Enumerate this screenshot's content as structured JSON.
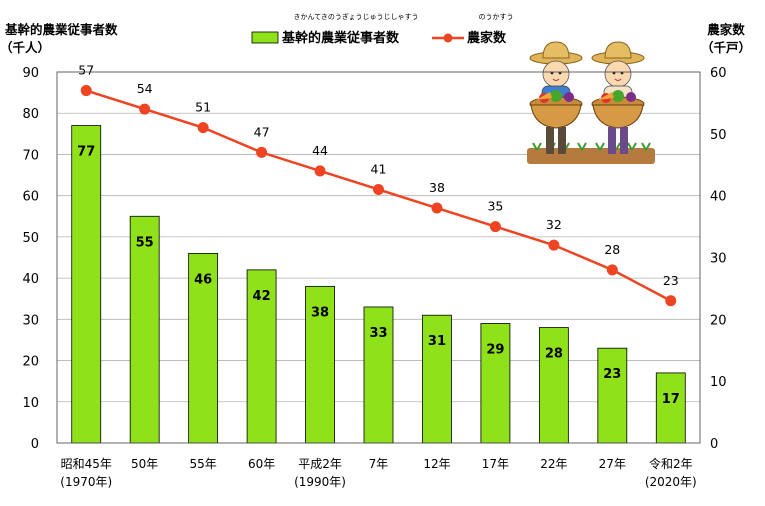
{
  "chart_data": {
    "type": "bar+line",
    "categories": [
      [
        "昭和45年",
        "(1970年)"
      ],
      [
        "50年"
      ],
      [
        "55年"
      ],
      [
        "60年"
      ],
      [
        "平成2年",
        "(1990年)"
      ],
      [
        "7年"
      ],
      [
        "12年"
      ],
      [
        "17年"
      ],
      [
        "22年"
      ],
      [
        "27年"
      ],
      [
        "令和2年",
        "(2020年)"
      ]
    ],
    "bar_series": {
      "name": "基幹的農業従事者数",
      "ruby": "きかんてきのうぎょうじゅうじしゃすう",
      "values": [
        77,
        55,
        46,
        42,
        38,
        33,
        31,
        29,
        28,
        23,
        17
      ],
      "labels": [
        "77",
        "55",
        "46",
        "42",
        "38",
        "33",
        "31",
        "29",
        "28",
        "23",
        "17"
      ],
      "color": "#8fe11a"
    },
    "line_series": {
      "name": "農家数",
      "ruby": "のうかすう",
      "values": [
        57,
        54,
        51,
        47,
        44,
        41,
        38,
        35,
        32,
        28,
        23
      ],
      "labels": [
        "57",
        "54",
        "51",
        "47",
        "44",
        "41",
        "38",
        "35",
        "32",
        "28",
        "23"
      ],
      "color": "#ee4422"
    },
    "y_left": {
      "label_line1": "基幹的農業従事者数",
      "label_line2": "（千人）",
      "ylim": [
        0,
        90
      ],
      "ticks": [
        "0",
        "10",
        "20",
        "30",
        "40",
        "50",
        "60",
        "70",
        "80",
        "90"
      ]
    },
    "y_right": {
      "label_line1": "農家数",
      "label_line2": "（千戸）",
      "ylim": [
        0,
        60
      ],
      "ticks": [
        "0",
        "10",
        "20",
        "30",
        "40",
        "50",
        "60"
      ]
    },
    "grid": true,
    "legend_position": "top-center",
    "illustration": "two-farmers-holding-vegetable-baskets"
  }
}
